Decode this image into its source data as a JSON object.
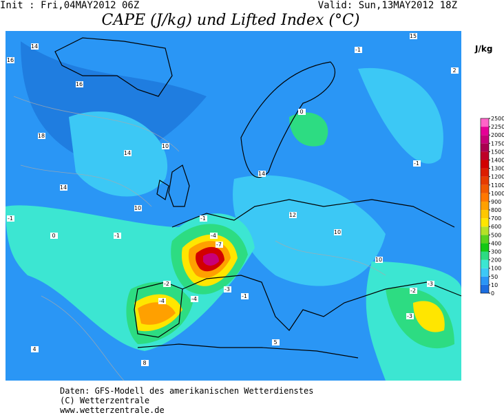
{
  "header": {
    "init": "Init : Fri,04MAY2012 06Z",
    "valid": "Valid: Sun,13MAY2012 18Z",
    "title": "CAPE (J/kg) und Lifted Index (°C)"
  },
  "colorbar": {
    "unit": "J/kg",
    "ticks": [
      0,
      10,
      50,
      100,
      200,
      300,
      400,
      500,
      600,
      700,
      800,
      900,
      1000,
      1100,
      1200,
      1300,
      1400,
      1500,
      1750,
      2000,
      2250,
      2500
    ],
    "colors": [
      "#1c6ee0",
      "#2a96f5",
      "#3cc8f5",
      "#3ce6d2",
      "#2ddc82",
      "#14c814",
      "#5ad21e",
      "#b4e128",
      "#ffe600",
      "#ffc800",
      "#ffa000",
      "#ff7800",
      "#f05a00",
      "#e63c00",
      "#dc1e00",
      "#d20000",
      "#be0028",
      "#aa0050",
      "#c80078",
      "#e60096",
      "#ff64c8"
    ]
  },
  "contour_labels": [
    14,
    16,
    16,
    14,
    18,
    14,
    10,
    10,
    -1,
    -4,
    -7,
    -2,
    -4,
    -4,
    -3,
    -1,
    -1,
    0,
    -1,
    0,
    -1,
    -3,
    -2,
    -3,
    12,
    10,
    10,
    14,
    4,
    8,
    5,
    15,
    2,
    -1
  ],
  "footer": [
    "Daten: GFS-Modell des amerikanischen Wetterdienstes",
    "(C) Wetterzentrale",
    "www.wetterzentrale.de"
  ]
}
